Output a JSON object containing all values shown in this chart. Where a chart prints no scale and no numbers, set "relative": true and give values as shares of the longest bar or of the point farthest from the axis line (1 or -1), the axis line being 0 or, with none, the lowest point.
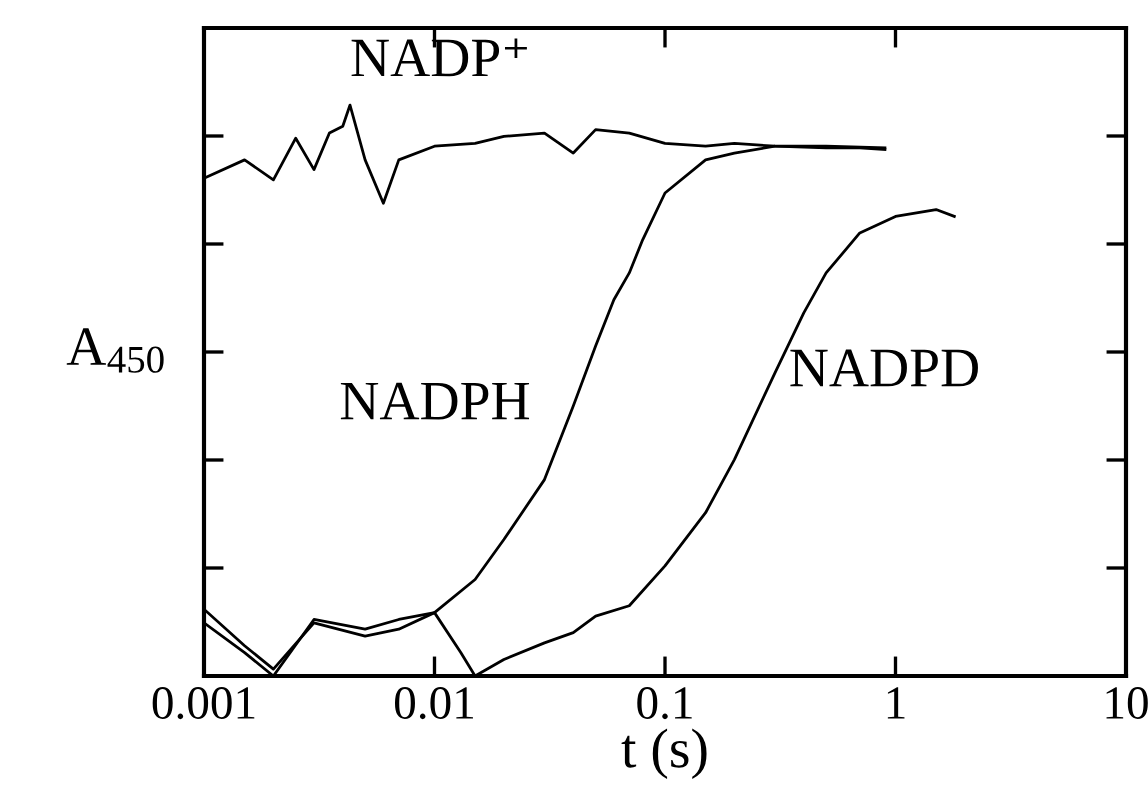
{
  "chart_data": {
    "type": "line",
    "relative": true,
    "log": "x",
    "xlabel": "t (s)",
    "ylabel": "A$_{450}$",
    "xlim": [
      0.001,
      10
    ],
    "xticks": [
      0.001,
      0.01,
      0.1,
      1,
      10
    ],
    "grid": false,
    "marker": "none",
    "line_style": "solid",
    "series": [
      {
        "name": "NADP⁺",
        "color": "#000000",
        "x": [
          0.001,
          0.0015,
          0.002,
          0.0025,
          0.003,
          0.0035,
          0.004,
          0.0043,
          0.005,
          0.006,
          0.007,
          0.01,
          0.015,
          0.02,
          0.03,
          0.04,
          0.05,
          0.07,
          0.1,
          0.15,
          0.2,
          0.3,
          0.5,
          0.7,
          0.9
        ],
        "values": [
          0.872,
          0.904,
          0.869,
          0.942,
          0.887,
          0.951,
          0.963,
          1,
          0.904,
          0.828,
          0.904,
          0.928,
          0.933,
          0.945,
          0.951,
          0.916,
          0.957,
          0.951,
          0.933,
          0.928,
          0.933,
          0.928,
          0.925,
          0.925,
          0.922
        ]
      },
      {
        "name": "NADPH",
        "color": "#000000",
        "x": [
          0.001,
          0.0015,
          0.002,
          0.003,
          0.005,
          0.007,
          0.01,
          0.015,
          0.02,
          0.03,
          0.04,
          0.05,
          0.06,
          0.07,
          0.08,
          0.1,
          0.15,
          0.2,
          0.3,
          0.5,
          0.9
        ],
        "values": [
          0.093,
          0.041,
          0,
          0.099,
          0.082,
          0.099,
          0.111,
          0.169,
          0.239,
          0.344,
          0.473,
          0.578,
          0.659,
          0.706,
          0.764,
          0.846,
          0.904,
          0.916,
          0.928,
          0.928,
          0.925
        ]
      },
      {
        "name": "NADPD",
        "color": "#000000",
        "x": [
          0.001,
          0.0015,
          0.002,
          0.003,
          0.005,
          0.007,
          0.01,
          0.013,
          0.015,
          0.02,
          0.03,
          0.04,
          0.05,
          0.07,
          0.1,
          0.15,
          0.2,
          0.3,
          0.4,
          0.5,
          0.7,
          1,
          1.5,
          1.8
        ],
        "values": [
          0.117,
          0.053,
          0.012,
          0.093,
          0.07,
          0.082,
          0.111,
          0.041,
          0,
          0.029,
          0.058,
          0.076,
          0.105,
          0.123,
          0.193,
          0.286,
          0.379,
          0.531,
          0.636,
          0.706,
          0.776,
          0.805,
          0.817,
          0.805
        ]
      }
    ]
  }
}
